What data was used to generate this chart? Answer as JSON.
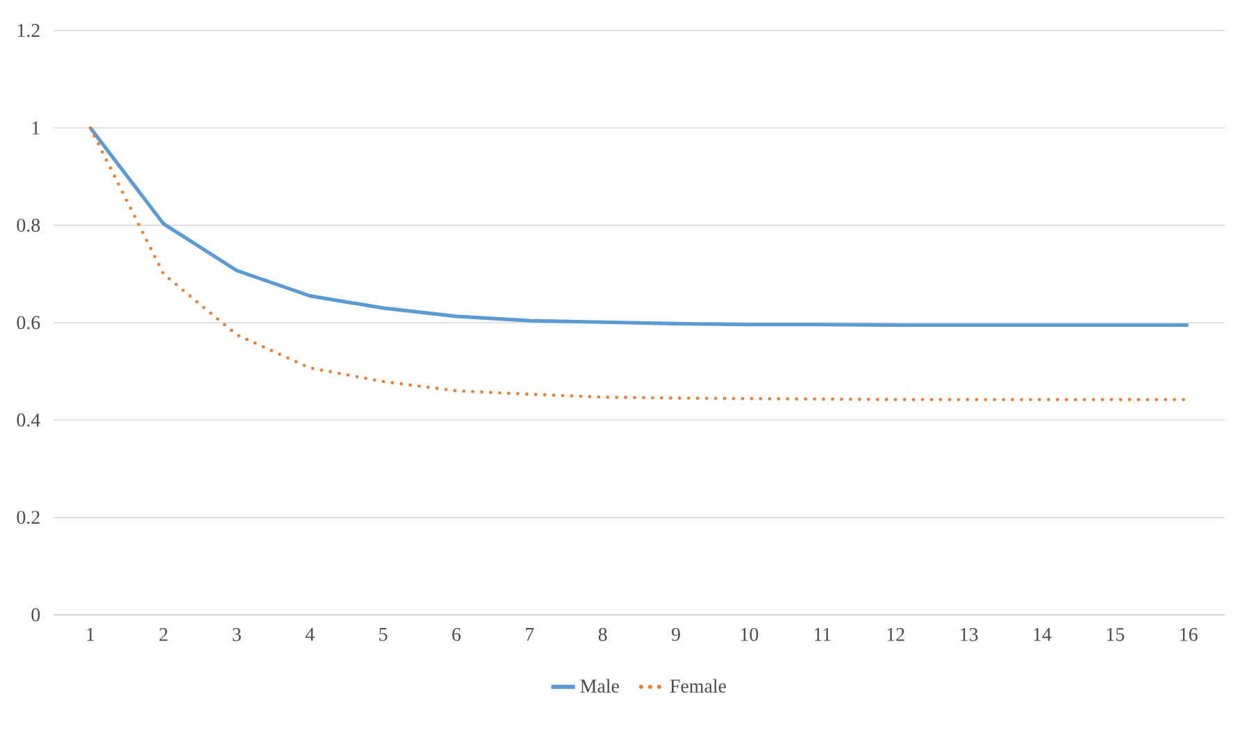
{
  "chart_data": {
    "type": "line",
    "categories": [
      "1",
      "2",
      "3",
      "4",
      "5",
      "6",
      "7",
      "8",
      "9",
      "10",
      "11",
      "12",
      "13",
      "14",
      "15",
      "16"
    ],
    "series": [
      {
        "name": "Male",
        "color": "#5b9bd5",
        "line_style": "solid",
        "values": [
          1.0,
          0.803,
          0.707,
          0.655,
          0.63,
          0.613,
          0.604,
          0.601,
          0.598,
          0.596,
          0.596,
          0.595,
          0.595,
          0.595,
          0.595,
          0.595
        ]
      },
      {
        "name": "Female",
        "color": "#ed7d31",
        "line_style": "dotted",
        "values": [
          1.0,
          0.7,
          0.575,
          0.507,
          0.479,
          0.46,
          0.453,
          0.447,
          0.445,
          0.444,
          0.443,
          0.442,
          0.442,
          0.442,
          0.442,
          0.442
        ]
      }
    ],
    "ylim": [
      0,
      1.2
    ],
    "yticks": [
      0,
      0.2,
      0.4,
      0.6,
      0.8,
      1,
      1.2
    ],
    "grid": "y",
    "legend": "bottom",
    "marker": "none"
  }
}
